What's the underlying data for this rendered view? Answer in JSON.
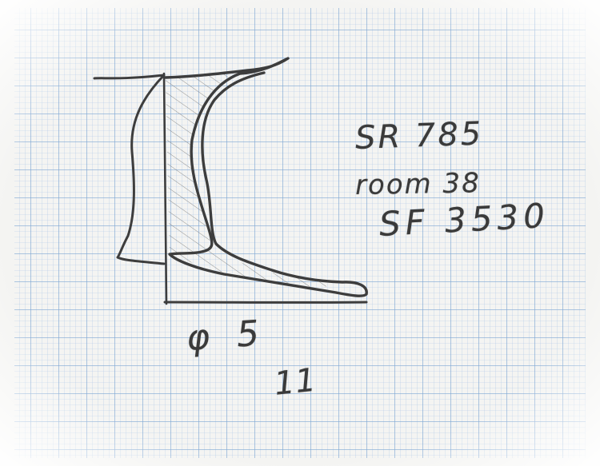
{
  "annotations": {
    "sherd_ref": "SR 785",
    "room": "room 38",
    "sf_number": "SF 3530",
    "diameter": "φ 5",
    "number": "11"
  },
  "paper": {
    "background": "#f4f4f2",
    "grid_color": "#8fb3dc",
    "pencil_color": "#3a3a3a"
  }
}
